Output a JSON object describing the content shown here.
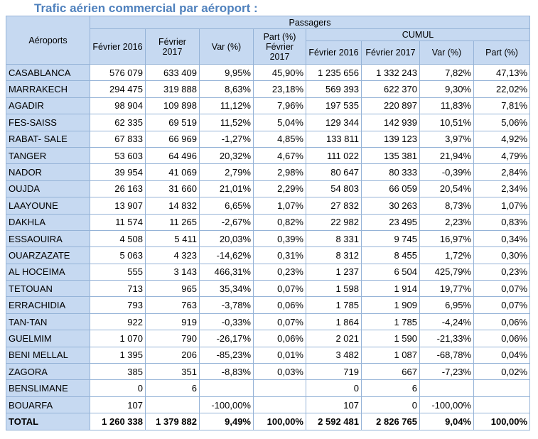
{
  "title": "Trafic aérien commercial par aéroport :",
  "headers": {
    "airports": "Aéroports",
    "passagers": "Passagers",
    "cumul": "CUMUL",
    "feb2016": "Février 2016",
    "feb2017": "Février 2017",
    "var": "Var (%)",
    "part_feb2017": "Part (%) Février 2017",
    "cumul_feb2016": "Février 2016",
    "cumul_feb2017": "Février 2017",
    "cumul_var": "Var (%)",
    "cumul_part": "Part (%)"
  },
  "rows": [
    [
      "CASABLANCA",
      "576 079",
      "633 409",
      "9,95%",
      "45,90%",
      "1 235 656",
      "1 332 243",
      "7,82%",
      "47,13%"
    ],
    [
      "MARRAKECH",
      "294 475",
      "319 888",
      "8,63%",
      "23,18%",
      "569 393",
      "622 370",
      "9,30%",
      "22,02%"
    ],
    [
      "AGADIR",
      "98 904",
      "109 898",
      "11,12%",
      "7,96%",
      "197 535",
      "220 897",
      "11,83%",
      "7,81%"
    ],
    [
      "FES-SAISS",
      "62 335",
      "69 519",
      "11,52%",
      "5,04%",
      "129 344",
      "142 939",
      "10,51%",
      "5,06%"
    ],
    [
      "RABAT- SALE",
      "67 833",
      "66 969",
      "-1,27%",
      "4,85%",
      "133 811",
      "139 123",
      "3,97%",
      "4,92%"
    ],
    [
      "TANGER",
      "53 603",
      "64 496",
      "20,32%",
      "4,67%",
      "111 022",
      "135 381",
      "21,94%",
      "4,79%"
    ],
    [
      "NADOR",
      "39 954",
      "41 069",
      "2,79%",
      "2,98%",
      "80 647",
      "80 333",
      "-0,39%",
      "2,84%"
    ],
    [
      "OUJDA",
      "26 163",
      "31 660",
      "21,01%",
      "2,29%",
      "54 803",
      "66 059",
      "20,54%",
      "2,34%"
    ],
    [
      "LAAYOUNE",
      "13 907",
      "14 832",
      "6,65%",
      "1,07%",
      "27 832",
      "30 263",
      "8,73%",
      "1,07%"
    ],
    [
      "DAKHLA",
      "11 574",
      "11 265",
      "-2,67%",
      "0,82%",
      "22 982",
      "23 495",
      "2,23%",
      "0,83%"
    ],
    [
      "ESSAOUIRA",
      "4 508",
      "5 411",
      "20,03%",
      "0,39%",
      "8 331",
      "9 745",
      "16,97%",
      "0,34%"
    ],
    [
      "OUARZAZATE",
      "5 063",
      "4 323",
      "-14,62%",
      "0,31%",
      "8 312",
      "8 455",
      "1,72%",
      "0,30%"
    ],
    [
      "AL HOCEIMA",
      "555",
      "3 143",
      "466,31%",
      "0,23%",
      "1 237",
      "6 504",
      "425,79%",
      "0,23%"
    ],
    [
      "TETOUAN",
      "713",
      "965",
      "35,34%",
      "0,07%",
      "1 598",
      "1 914",
      "19,77%",
      "0,07%"
    ],
    [
      "ERRACHIDIA",
      "793",
      "763",
      "-3,78%",
      "0,06%",
      "1 785",
      "1 909",
      "6,95%",
      "0,07%"
    ],
    [
      "TAN-TAN",
      "922",
      "919",
      "-0,33%",
      "0,07%",
      "1 864",
      "1 785",
      "-4,24%",
      "0,06%"
    ],
    [
      "GUELMIM",
      "1 070",
      "790",
      "-26,17%",
      "0,06%",
      "2 021",
      "1 590",
      "-21,33%",
      "0,06%"
    ],
    [
      "BENI MELLAL",
      "1 395",
      "206",
      "-85,23%",
      "0,01%",
      "3 482",
      "1 087",
      "-68,78%",
      "0,04%"
    ],
    [
      "ZAGORA",
      "385",
      "351",
      "-8,83%",
      "0,03%",
      "719",
      "667",
      "-7,23%",
      "0,02%"
    ],
    [
      "BENSLIMANE",
      "0",
      "6",
      "",
      "",
      "0",
      "6",
      "",
      ""
    ],
    [
      "BOUARFA",
      "107",
      "",
      "-100,00%",
      "",
      "107",
      "0",
      "-100,00%",
      ""
    ]
  ],
  "total": [
    "TOTAL",
    "1 260 338",
    "1 379 882",
    "9,49%",
    "100,00%",
    "2 592 481",
    "2 826 765",
    "9,04%",
    "100,00%"
  ]
}
